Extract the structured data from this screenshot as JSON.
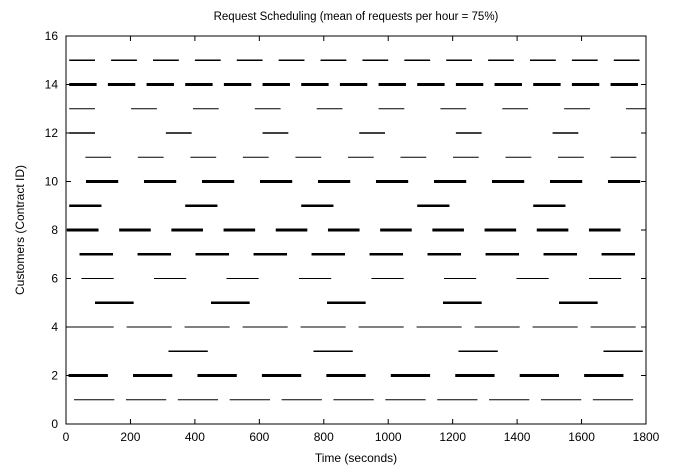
{
  "chart_data": {
    "type": "gantt",
    "title": "Request Scheduling (mean of requests per hour = 75%)",
    "xlabel": "Time (seconds)",
    "ylabel": "Customers (Contract ID)",
    "xlim": [
      0,
      1800
    ],
    "ylim": [
      0,
      16
    ],
    "xticks": [
      0,
      200,
      400,
      600,
      800,
      1000,
      1200,
      1400,
      1600,
      1800
    ],
    "yticks": [
      0,
      2,
      4,
      6,
      8,
      10,
      12,
      14,
      16
    ],
    "grid": false,
    "line_color": "#000000",
    "customers": [
      {
        "id": 1,
        "weight": 1,
        "segments": [
          [
            25,
            150
          ],
          [
            186,
            311
          ],
          [
            347,
            472
          ],
          [
            508,
            633
          ],
          [
            669,
            794
          ],
          [
            830,
            955
          ],
          [
            991,
            1116
          ],
          [
            1152,
            1277
          ],
          [
            1313,
            1438
          ],
          [
            1474,
            1599
          ],
          [
            1635,
            1760
          ]
        ]
      },
      {
        "id": 2,
        "weight": 3,
        "segments": [
          [
            8,
            130
          ],
          [
            208,
            330
          ],
          [
            408,
            530
          ],
          [
            608,
            730
          ],
          [
            808,
            930
          ],
          [
            1008,
            1130
          ],
          [
            1208,
            1330
          ],
          [
            1408,
            1530
          ],
          [
            1608,
            1730
          ]
        ]
      },
      {
        "id": 3,
        "weight": 1.5,
        "segments": [
          [
            318,
            440
          ],
          [
            768,
            890
          ],
          [
            1218,
            1340
          ],
          [
            1668,
            1790
          ]
        ]
      },
      {
        "id": 4,
        "weight": 1,
        "segments": [
          [
            8,
            148
          ],
          [
            188,
            328
          ],
          [
            368,
            508
          ],
          [
            548,
            688
          ],
          [
            728,
            868
          ],
          [
            908,
            1048
          ],
          [
            1088,
            1228
          ],
          [
            1268,
            1408
          ],
          [
            1448,
            1588
          ],
          [
            1628,
            1768
          ]
        ]
      },
      {
        "id": 5,
        "weight": 2.5,
        "segments": [
          [
            90,
            210
          ],
          [
            450,
            570
          ],
          [
            810,
            930
          ],
          [
            1170,
            1290
          ],
          [
            1530,
            1650
          ]
        ]
      },
      {
        "id": 6,
        "weight": 1,
        "segments": [
          [
            48,
            148
          ],
          [
            273,
            373
          ],
          [
            498,
            598
          ],
          [
            723,
            823
          ],
          [
            948,
            1048
          ],
          [
            1173,
            1273
          ],
          [
            1398,
            1498
          ],
          [
            1623,
            1723
          ]
        ]
      },
      {
        "id": 7,
        "weight": 2.5,
        "segments": [
          [
            42,
            146
          ],
          [
            222,
            326
          ],
          [
            402,
            506
          ],
          [
            582,
            686
          ],
          [
            762,
            866
          ],
          [
            942,
            1046
          ],
          [
            1122,
            1226
          ],
          [
            1302,
            1406
          ],
          [
            1482,
            1586
          ],
          [
            1662,
            1766
          ]
        ]
      },
      {
        "id": 8,
        "weight": 3,
        "segments": [
          [
            3,
            101
          ],
          [
            165,
            263
          ],
          [
            327,
            425
          ],
          [
            489,
            587
          ],
          [
            651,
            749
          ],
          [
            813,
            911
          ],
          [
            975,
            1073
          ],
          [
            1137,
            1235
          ],
          [
            1299,
            1397
          ],
          [
            1461,
            1559
          ],
          [
            1623,
            1721
          ]
        ]
      },
      {
        "id": 9,
        "weight": 2.5,
        "segments": [
          [
            10,
            110
          ],
          [
            370,
            470
          ],
          [
            730,
            830
          ],
          [
            1090,
            1190
          ],
          [
            1450,
            1550
          ]
        ]
      },
      {
        "id": 10,
        "weight": 3,
        "segments": [
          [
            62,
            162
          ],
          [
            242,
            342
          ],
          [
            422,
            522
          ],
          [
            602,
            702
          ],
          [
            782,
            882
          ],
          [
            962,
            1062
          ],
          [
            1142,
            1242
          ],
          [
            1322,
            1422
          ],
          [
            1502,
            1602
          ],
          [
            1682,
            1782
          ]
        ]
      },
      {
        "id": 11,
        "weight": 1,
        "segments": [
          [
            60,
            140
          ],
          [
            223,
            303
          ],
          [
            386,
            466
          ],
          [
            549,
            629
          ],
          [
            712,
            792
          ],
          [
            875,
            955
          ],
          [
            1038,
            1118
          ],
          [
            1201,
            1281
          ],
          [
            1364,
            1444
          ],
          [
            1527,
            1607
          ],
          [
            1690,
            1770
          ]
        ]
      },
      {
        "id": 12,
        "weight": 1.5,
        "segments": [
          [
            10,
            90
          ],
          [
            310,
            390
          ],
          [
            610,
            690
          ],
          [
            910,
            990
          ],
          [
            1210,
            1290
          ],
          [
            1510,
            1590
          ]
        ]
      },
      {
        "id": 13,
        "weight": 1,
        "segments": [
          [
            10,
            90
          ],
          [
            202,
            282
          ],
          [
            394,
            474
          ],
          [
            586,
            666
          ],
          [
            778,
            858
          ],
          [
            970,
            1050
          ],
          [
            1162,
            1242
          ],
          [
            1354,
            1434
          ],
          [
            1546,
            1626
          ],
          [
            1738,
            1818
          ]
        ]
      },
      {
        "id": 14,
        "weight": 3,
        "segments": [
          [
            10,
            95
          ],
          [
            130,
            215
          ],
          [
            250,
            335
          ],
          [
            370,
            455
          ],
          [
            490,
            575
          ],
          [
            610,
            695
          ],
          [
            730,
            815
          ],
          [
            850,
            935
          ],
          [
            970,
            1055
          ],
          [
            1090,
            1175
          ],
          [
            1210,
            1295
          ],
          [
            1330,
            1415
          ],
          [
            1450,
            1535
          ],
          [
            1570,
            1655
          ],
          [
            1690,
            1775
          ]
        ]
      },
      {
        "id": 15,
        "weight": 1.5,
        "segments": [
          [
            10,
            90
          ],
          [
            140,
            220
          ],
          [
            270,
            350
          ],
          [
            400,
            480
          ],
          [
            530,
            610
          ],
          [
            660,
            740
          ],
          [
            790,
            870
          ],
          [
            920,
            1000
          ],
          [
            1050,
            1130
          ],
          [
            1180,
            1260
          ],
          [
            1310,
            1390
          ],
          [
            1440,
            1520
          ],
          [
            1570,
            1650
          ],
          [
            1700,
            1780
          ]
        ]
      }
    ]
  }
}
